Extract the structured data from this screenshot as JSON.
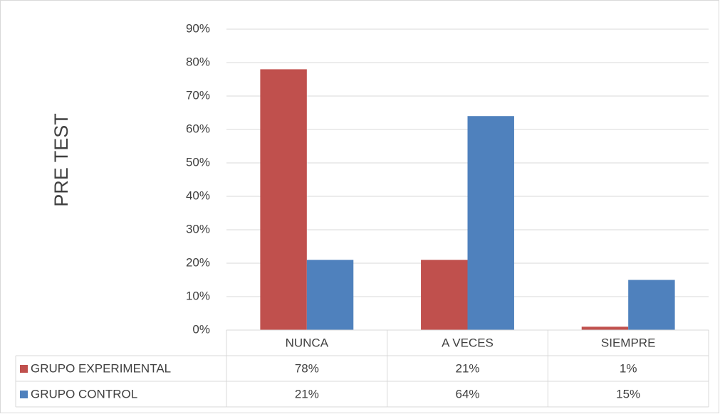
{
  "chart_data": {
    "type": "bar",
    "y_label": "PRE TEST",
    "categories": [
      "NUNCA",
      "A VECES",
      "SIEMPRE"
    ],
    "series": [
      {
        "name": "GRUPO EXPERIMENTAL",
        "color": "#c0504d",
        "values": [
          78,
          21,
          1
        ],
        "value_labels": [
          "78%",
          "21%",
          "1%"
        ]
      },
      {
        "name": "GRUPO CONTROL",
        "color": "#4f81bd",
        "values": [
          21,
          64,
          15
        ],
        "value_labels": [
          "21%",
          "64%",
          "15%"
        ]
      }
    ],
    "ylim": [
      0,
      90
    ],
    "yticks": [
      {
        "value": 0,
        "label": "0%"
      },
      {
        "value": 10,
        "label": "10%"
      },
      {
        "value": 20,
        "label": "20%"
      },
      {
        "value": 30,
        "label": "30%"
      },
      {
        "value": 40,
        "label": "40%"
      },
      {
        "value": 50,
        "label": "50%"
      },
      {
        "value": 60,
        "label": "60%"
      },
      {
        "value": 70,
        "label": "70%"
      },
      {
        "value": 80,
        "label": "80%"
      },
      {
        "value": 90,
        "label": "90%"
      }
    ],
    "grid": true,
    "data_table": true
  }
}
